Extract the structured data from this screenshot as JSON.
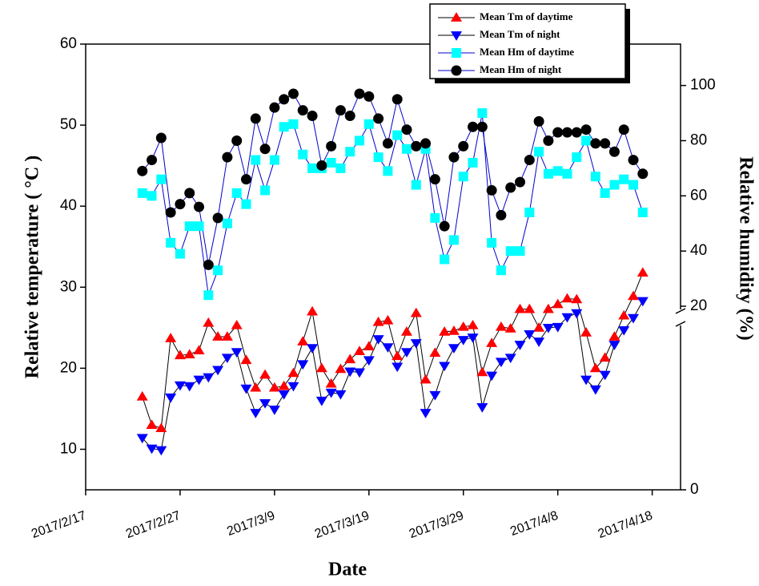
{
  "chart_data": {
    "type": "line",
    "x_label": "Date",
    "y_label": "Relative temperature ( °C )",
    "y2_label": "Relative humidity (%)",
    "x": [
      "2017/2/23",
      "2017/2/24",
      "2017/2/25",
      "2017/2/26",
      "2017/2/27",
      "2017/2/28",
      "2017/3/1",
      "2017/3/2",
      "2017/3/3",
      "2017/3/4",
      "2017/3/5",
      "2017/3/6",
      "2017/3/7",
      "2017/3/8",
      "2017/3/9",
      "2017/3/10",
      "2017/3/11",
      "2017/3/12",
      "2017/3/13",
      "2017/3/14",
      "2017/3/15",
      "2017/3/16",
      "2017/3/17",
      "2017/3/18",
      "2017/3/19",
      "2017/3/20",
      "2017/3/21",
      "2017/3/22",
      "2017/3/23",
      "2017/3/24",
      "2017/3/25",
      "2017/3/26",
      "2017/3/27",
      "2017/3/28",
      "2017/3/29",
      "2017/3/30",
      "2017/3/31",
      "2017/4/1",
      "2017/4/2",
      "2017/4/3",
      "2017/4/4",
      "2017/4/5",
      "2017/4/6",
      "2017/4/7",
      "2017/4/8",
      "2017/4/9",
      "2017/4/10",
      "2017/4/11",
      "2017/4/12",
      "2017/4/13",
      "2017/4/14",
      "2017/4/15",
      "2017/4/16",
      "2017/4/17"
    ],
    "xlim": [
      "2017/2/17",
      "2017/4/21"
    ],
    "xticks": [
      "2017/2/17",
      "2017/2/27",
      "2017/3/9",
      "2017/3/19",
      "2017/3/29",
      "2017/4/8",
      "2017/4/18"
    ],
    "ylim": [
      5,
      60
    ],
    "yticks": [
      10,
      20,
      30,
      40,
      50,
      60
    ],
    "y2lim": [
      0,
      115
    ],
    "y2ticks": [
      0,
      20,
      40,
      60,
      80,
      100
    ],
    "y2_break": 20,
    "legend": "top-right",
    "series": [
      {
        "name": "Mean Tm of daytime",
        "color": "#ff0000",
        "line_color": "#000000",
        "marker": "triangle-up",
        "values": [
          16.5,
          13,
          12.6,
          23.7,
          21.6,
          21.7,
          22.2,
          25.6,
          23.9,
          23.9,
          25.3,
          21,
          17.6,
          19.2,
          17.6,
          17.8,
          19.4,
          23.3,
          27,
          20,
          18.1,
          19.9,
          21.1,
          22.1,
          22.7,
          25.7,
          25.9,
          21.5,
          24.5,
          26.8,
          18.6,
          21.9,
          24.5,
          24.6,
          25.1,
          25.3,
          19.5,
          23.1,
          25.1,
          24.9,
          27.3,
          27.3,
          25,
          27.3,
          27.9,
          28.6,
          28.5,
          24.4,
          20,
          21.3,
          23.9,
          26.5,
          28.9,
          31.8
        ]
      },
      {
        "name": "Mean Tm of night",
        "color": "#0000ff",
        "line_color": "#000000",
        "marker": "triangle-down",
        "values": [
          11.4,
          10.1,
          9.9,
          16.4,
          17.9,
          17.8,
          18.6,
          18.9,
          19.8,
          21.3,
          22,
          17.5,
          14.5,
          15.7,
          14.9,
          16.8,
          17.8,
          20.5,
          22.5,
          16,
          17,
          16.8,
          19.6,
          19.5,
          21,
          23.6,
          22.6,
          20.2,
          22,
          23.1,
          14.5,
          16.7,
          20.3,
          22.5,
          23.5,
          23.8,
          15.2,
          19.1,
          20.8,
          21.3,
          22.9,
          24.2,
          23.3,
          25,
          25.1,
          26.3,
          26.8,
          18.6,
          17.4,
          19.2,
          22.9,
          24.7,
          26.2,
          28.3
        ]
      },
      {
        "name": "Mean Hm of daytime",
        "color": "#00ffff",
        "line_color": "#0000cc",
        "marker": "square",
        "axis": "y2",
        "values": [
          61,
          60,
          66,
          43,
          39,
          49,
          49,
          24,
          33,
          50,
          61,
          57,
          73,
          62,
          73,
          85,
          86,
          75,
          70,
          70,
          72,
          70,
          76,
          80,
          86,
          74,
          69,
          82,
          77,
          64,
          77,
          52,
          37,
          44,
          67,
          72,
          90,
          43,
          33,
          40,
          40,
          54,
          76,
          68,
          69,
          68,
          74,
          80,
          67,
          61,
          64,
          66,
          64,
          54
        ]
      },
      {
        "name": "Mean Hm of night",
        "color": "#000000",
        "line_color": "#0000cc",
        "marker": "circle",
        "axis": "y2",
        "values": [
          69,
          73,
          81,
          54,
          57,
          61,
          56,
          35,
          52,
          74,
          80,
          66,
          88,
          77,
          92,
          95,
          97,
          91,
          89,
          71,
          78,
          91,
          89,
          97,
          96,
          88,
          79,
          95,
          84,
          78,
          79,
          66,
          49,
          74,
          78,
          85,
          85,
          62,
          53,
          63,
          65,
          73,
          87,
          80,
          83,
          83,
          83,
          84,
          79,
          79,
          76,
          84,
          73,
          68
        ]
      }
    ]
  }
}
